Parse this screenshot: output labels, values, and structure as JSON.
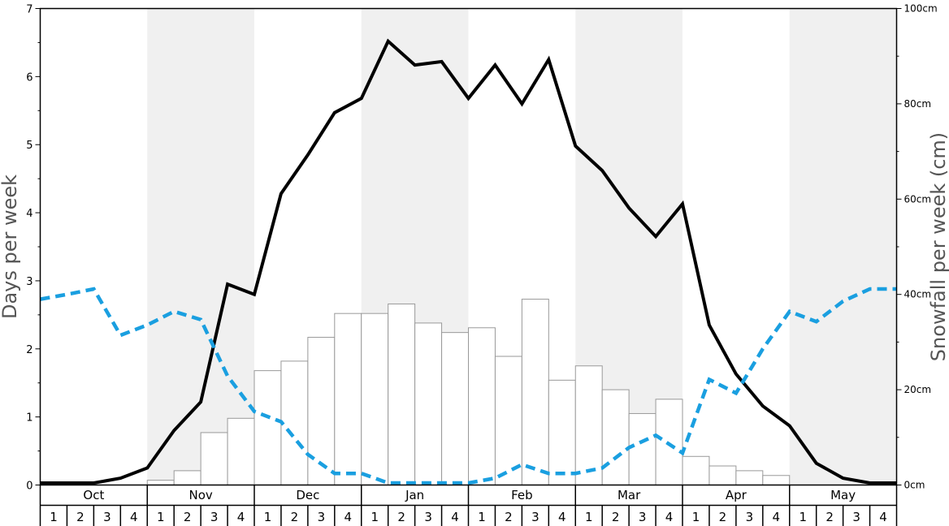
{
  "chart_data": {
    "type": "bar",
    "months": [
      "Oct",
      "Nov",
      "Dec",
      "Jan",
      "Feb",
      "Mar",
      "Apr",
      "May"
    ],
    "weeks_per_month": [
      "1",
      "2",
      "3",
      "4"
    ],
    "ylabel": "Days per week",
    "ylabel_right": "Snowfall per week (cm)",
    "ylim": [
      0,
      7
    ],
    "ylim_right": [
      0,
      100
    ],
    "yticks": [
      "0",
      "1",
      "2",
      "3",
      "4",
      "5",
      "6",
      "7"
    ],
    "yticks_right": [
      "0cm",
      "20cm",
      "40cm",
      "60cm",
      "80cm",
      "100cm"
    ],
    "series": [
      {
        "kind": "bar",
        "axis": "right",
        "values": [
          0,
          0,
          0,
          0,
          1,
          3,
          11,
          14,
          24,
          26,
          31,
          36,
          36,
          38,
          34,
          32,
          33,
          27,
          39,
          22,
          25,
          20,
          15,
          18,
          6,
          4,
          3,
          2,
          0,
          0,
          0,
          0
        ]
      },
      {
        "kind": "line",
        "axis": "left",
        "values": [
          0.03,
          0.03,
          0.03,
          0.1,
          0.25,
          0.8,
          1.22,
          2.95,
          2.8,
          4.28,
          4.85,
          5.47,
          5.68,
          6.52,
          6.17,
          6.22,
          5.68,
          6.17,
          5.6,
          6.25,
          4.98,
          4.62,
          4.07,
          3.65,
          4.13,
          2.35,
          1.63,
          1.16,
          0.87,
          0.32,
          0.1,
          0.03,
          0.03
        ]
      },
      {
        "kind": "dashed-line",
        "axis": "left",
        "values": [
          2.73,
          2.8,
          2.88,
          2.2,
          2.35,
          2.55,
          2.43,
          1.6,
          1.08,
          0.93,
          0.45,
          0.17,
          0.17,
          0.03,
          0.03,
          0.03,
          0.03,
          0.1,
          0.3,
          0.17,
          0.17,
          0.25,
          0.55,
          0.73,
          0.47,
          1.55,
          1.35,
          2.0,
          2.55,
          2.4,
          2.7,
          2.88,
          2.88
        ]
      }
    ],
    "colors": {
      "line": "#000000",
      "dashed": "#1a9fe0",
      "bar_fill": "#ffffff",
      "bar_stroke": "#999999",
      "shade": "#f0f0f0"
    },
    "shaded_months": [
      "Nov",
      "Jan",
      "Mar",
      "May"
    ],
    "grid": false,
    "legend": "none"
  }
}
